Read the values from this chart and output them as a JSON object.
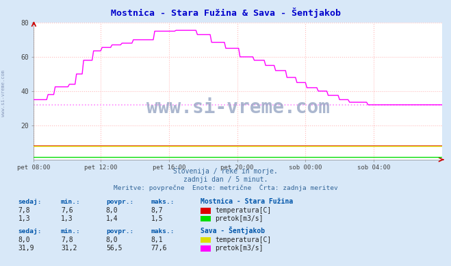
{
  "title": "Mostnica - Stara Fužina & Sava - Šentjakob",
  "bg_color": "#d8e8f8",
  "plot_bg_color": "#ffffff",
  "grid_color": "#ffbbbb",
  "x_labels": [
    "pet 08:00",
    "pet 12:00",
    "pet 16:00",
    "pet 20:00",
    "sob 00:00",
    "sob 04:00"
  ],
  "x_ticks_norm": [
    0.0,
    0.1667,
    0.3333,
    0.5,
    0.6667,
    0.8333
  ],
  "ylim": [
    0,
    80
  ],
  "yticks": [
    20,
    40,
    60,
    80
  ],
  "subtitle1": "Slovenija / reke in morje.",
  "subtitle2": "zadnji dan / 5 minut.",
  "subtitle3": "Meritve: povprečne  Enote: metrične  Črta: zadnja meritev",
  "watermark": "www.si-vreme.com",
  "table_headers": [
    "sedaj:",
    "min.:",
    "povpr.:",
    "maks.:"
  ],
  "station1_name": "Mostnica - Stara Fužina",
  "station1_row1": [
    "7,8",
    "7,6",
    "8,0",
    "8,7"
  ],
  "station1_row2": [
    "1,3",
    "1,3",
    "1,4",
    "1,5"
  ],
  "station1_color1": "#dd0000",
  "station1_color2": "#00dd00",
  "station1_label1": "temperatura[C]",
  "station1_label2": "pretok[m3/s]",
  "station2_name": "Sava - Šentjakob",
  "station2_row1": [
    "8,0",
    "7,8",
    "8,0",
    "8,1"
  ],
  "station2_row2": [
    "31,9",
    "31,2",
    "56,5",
    "77,6"
  ],
  "station2_color1": "#dddd00",
  "station2_color2": "#ff00ff",
  "station2_label1": "temperatura[C]",
  "station2_label2": "pretok[m3/s]",
  "avg_dotted_color": "#ff88ff",
  "avg_dotted_value": 32.0,
  "n_points": 288
}
